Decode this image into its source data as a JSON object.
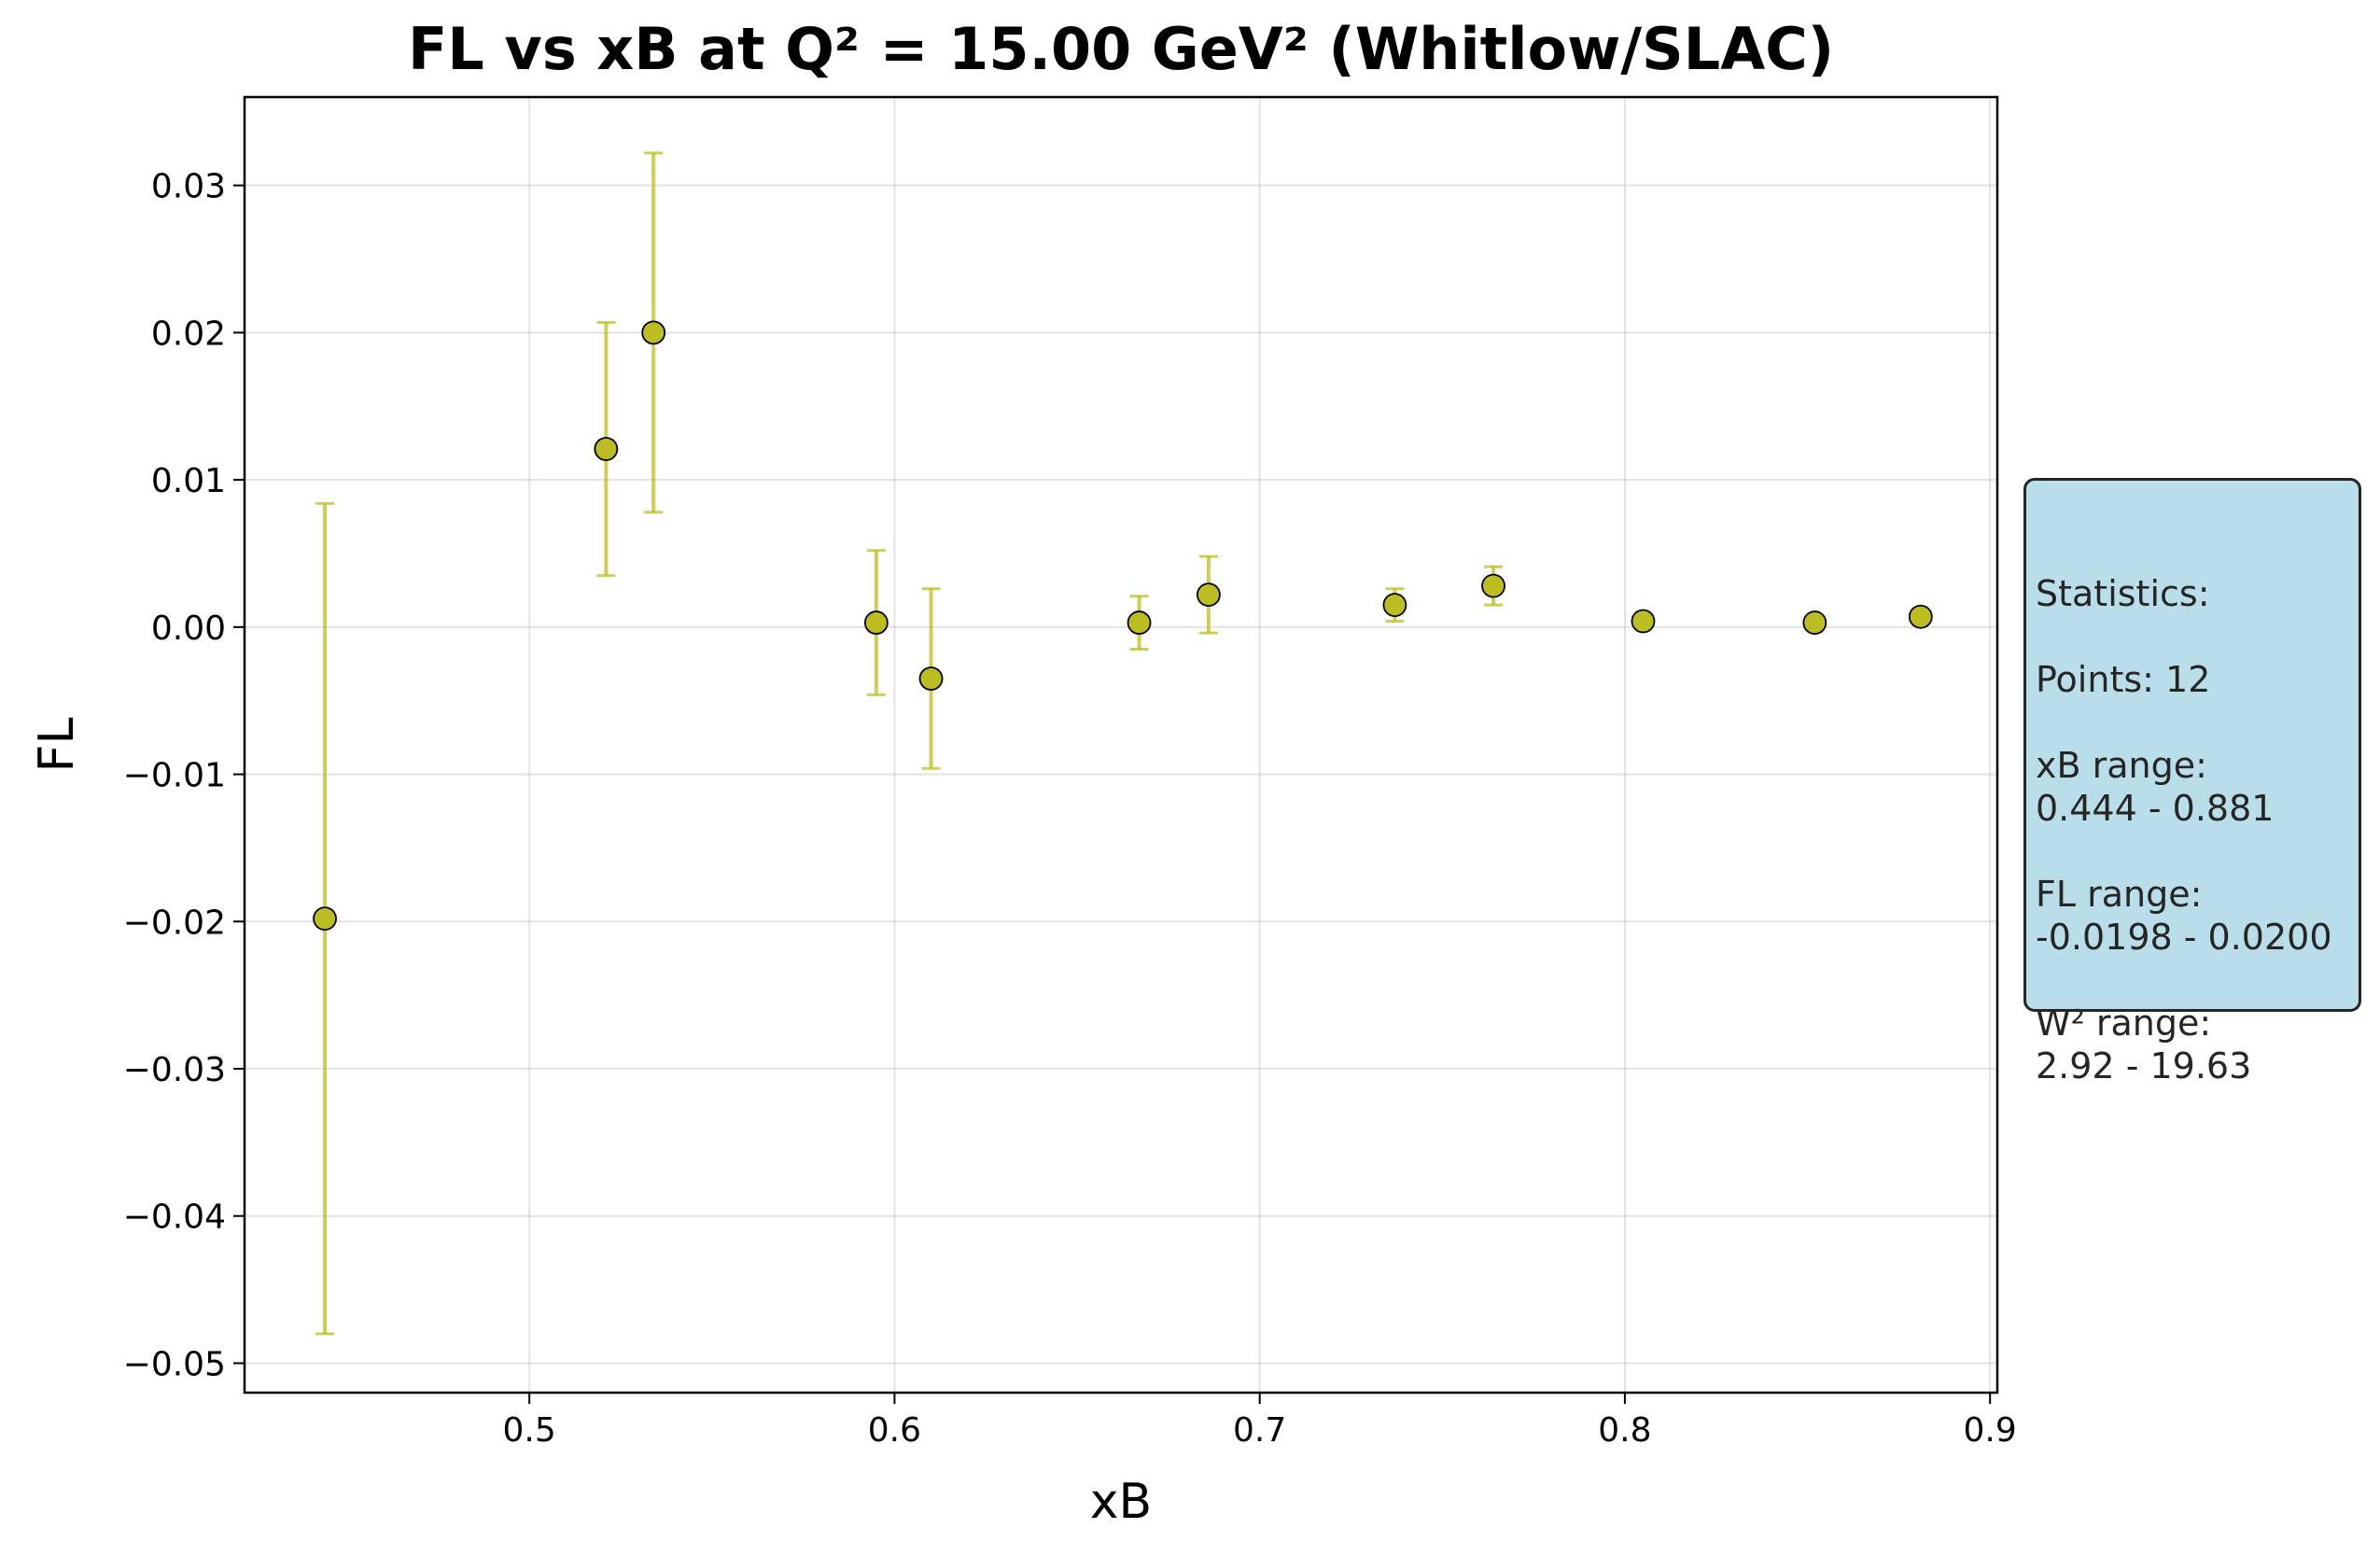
{
  "chart_data": {
    "type": "scatter",
    "title": "FL vs xB at Q² = 15.00 GeV² (Whitlow/SLAC)",
    "xlabel": "xB",
    "ylabel": "FL",
    "xlim": [
      0.422,
      0.902
    ],
    "ylim": [
      -0.052,
      0.036
    ],
    "x_ticks": [
      0.5,
      0.6,
      0.7,
      0.8,
      0.9
    ],
    "x_tick_labels": [
      "0.5",
      "0.6",
      "0.7",
      "0.8",
      "0.9"
    ],
    "y_ticks": [
      0.03,
      0.02,
      0.01,
      0.0,
      -0.01,
      -0.02,
      -0.03,
      -0.04,
      -0.05
    ],
    "y_tick_labels": [
      "0.03",
      "0.02",
      "0.01",
      "0.00",
      "−0.01",
      "−0.02",
      "−0.03",
      "−0.04",
      "−0.05"
    ],
    "grid": true,
    "colors": {
      "marker_fill": "#bcbd22",
      "marker_edge": "#000000",
      "errorbar": "#bcbd22"
    },
    "series": [
      {
        "x": [
          0.444,
          0.521,
          0.534,
          0.595,
          0.61,
          0.667,
          0.686,
          0.737,
          0.764,
          0.805,
          0.852,
          0.881
        ],
        "y": [
          -0.0198,
          0.0121,
          0.02,
          0.0003,
          -0.0035,
          0.0003,
          0.0022,
          0.0015,
          0.0028,
          0.0004,
          0.0003,
          0.0007
        ],
        "yerr": [
          0.0282,
          0.0086,
          0.0122,
          0.0049,
          0.0061,
          0.0018,
          0.0026,
          0.0011,
          0.0013,
          0.0004,
          0.0004,
          0.0003
        ]
      }
    ]
  },
  "stats_box": {
    "text": "Statistics:\n\nPoints: 12\n\nxB range:\n0.444 - 0.881\n\nFL range:\n-0.0198 - 0.0200\n\nW² range:\n2.92 - 19.63"
  }
}
